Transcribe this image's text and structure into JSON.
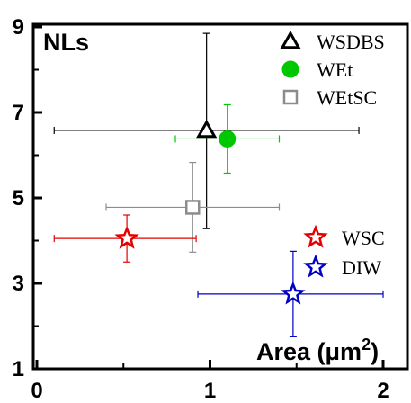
{
  "chart_data": {
    "type": "scatter",
    "title": "",
    "corner_label": "NLs",
    "xlabel_text": "Area (μm",
    "xlabel_sup": "2",
    "xlabel_close": ")",
    "ylabel": "",
    "xlim": [
      0,
      2.2
    ],
    "ylim": [
      1,
      9
    ],
    "x_ticks": [
      "0",
      "1",
      "2"
    ],
    "y_ticks": [
      "1",
      "3",
      "5",
      "7",
      "9"
    ],
    "grid": false,
    "legends": [
      {
        "placement": "top-right",
        "series": [
          "WSDBS",
          "WEt",
          "WEtSC"
        ]
      },
      {
        "placement": "bottom-right",
        "series": [
          "WSC",
          "DIW"
        ]
      }
    ],
    "series": [
      {
        "name": "WSDBS",
        "marker": "open-triangle",
        "color": "#000000",
        "x": 0.98,
        "y": 6.58,
        "xerr": [
          0.88,
          0.88
        ],
        "yerr": [
          2.3,
          2.27
        ]
      },
      {
        "name": "WEt",
        "marker": "filled-circle",
        "color": "#00c800",
        "x": 1.1,
        "y": 6.38,
        "xerr": [
          0.3,
          0.3
        ],
        "yerr": [
          0.8,
          0.8
        ]
      },
      {
        "name": "WEtSC",
        "marker": "open-square",
        "color": "#8c8c8c",
        "x": 0.9,
        "y": 4.78,
        "xerr": [
          0.5,
          0.5
        ],
        "yerr": [
          1.05,
          1.05
        ]
      },
      {
        "name": "WSC",
        "marker": "open-star",
        "color": "#e60000",
        "x": 0.52,
        "y": 4.05,
        "xerr": [
          0.42,
          0.4
        ],
        "yerr": [
          0.55,
          0.55
        ]
      },
      {
        "name": "DIW",
        "marker": "open-star",
        "color": "#0000c8",
        "x": 1.48,
        "y": 2.75,
        "xerr": [
          0.55,
          0.52
        ],
        "yerr": [
          1.0,
          1.0
        ]
      }
    ]
  }
}
